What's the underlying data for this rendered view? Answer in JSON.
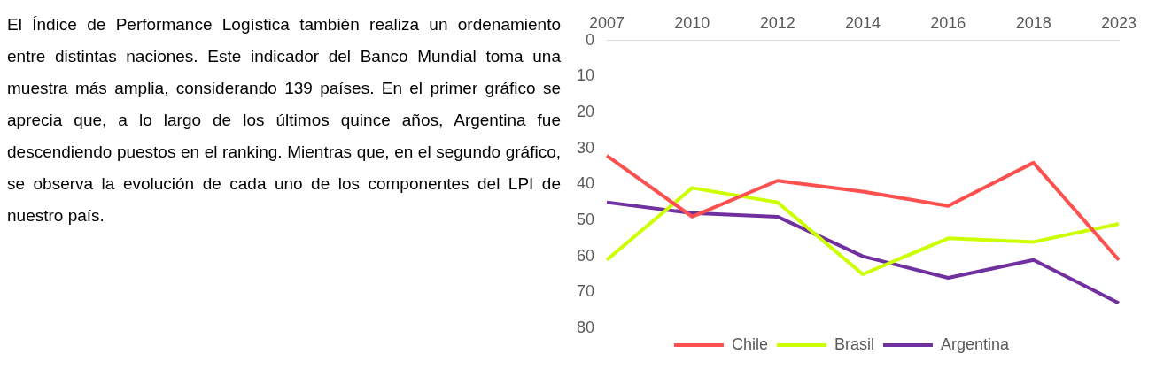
{
  "chart_data": {
    "type": "line",
    "annotations": [
      "El Índice de Performance Logística también realiza un ordenamiento entre distintas naciones. Este indicador del Banco Mundial toma una muestra más amplia, considerando 139 países. En el primer gráfico se aprecia que, a lo largo de los últimos quince años, Argentina fue descendiendo puestos en el ranking. Mientras que, en el segundo gráfico, se observa la evolución de cada uno de los componentes del LPI de nuestro país."
    ],
    "categories": [
      "2007",
      "2010",
      "2012",
      "2014",
      "2016",
      "2018",
      "2023"
    ],
    "series": [
      {
        "name": "Chile",
        "color": "#ff5050",
        "values": [
          32,
          49,
          39,
          42,
          46,
          34,
          61
        ]
      },
      {
        "name": "Brasil",
        "color": "#ccff00",
        "values": [
          61,
          41,
          45,
          65,
          55,
          56,
          51
        ]
      },
      {
        "name": "Argentina",
        "color": "#7030a0",
        "values": [
          45,
          48,
          49,
          60,
          66,
          61,
          73
        ]
      }
    ],
    "ylim": [
      80,
      0
    ],
    "yticks": [
      0,
      10,
      20,
      30,
      40,
      50,
      60,
      70,
      80
    ],
    "grid": false,
    "legend": "bottom",
    "marker": "none",
    "line_style": "solid"
  }
}
